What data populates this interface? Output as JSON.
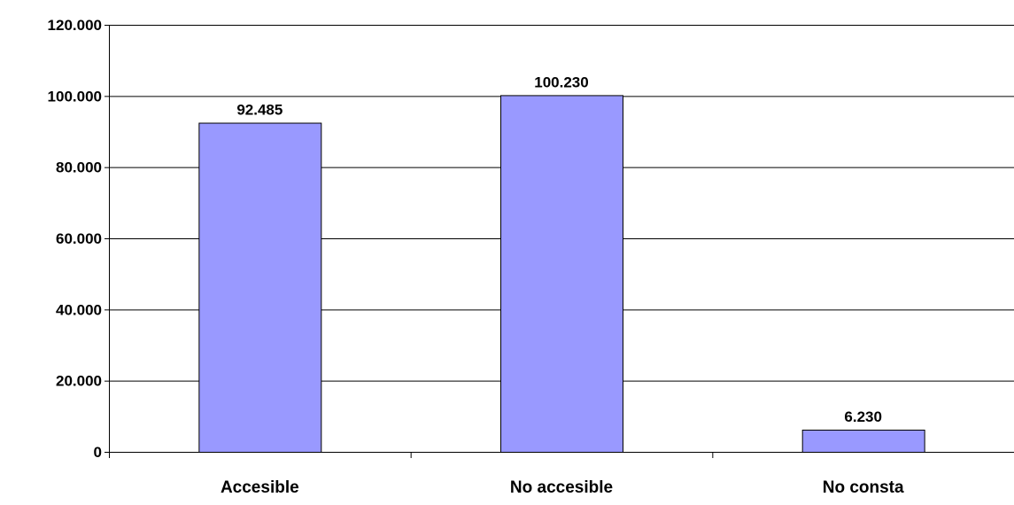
{
  "chart_data": {
    "type": "bar",
    "categories": [
      "Accesible",
      "No accesible",
      "No consta"
    ],
    "values": [
      92485,
      100230,
      6230
    ],
    "value_labels": [
      "92.485",
      "100.230",
      "6.230"
    ],
    "y_ticks": [
      0,
      20000,
      40000,
      60000,
      80000,
      100000,
      120000
    ],
    "y_tick_labels": [
      "0",
      "20.000",
      "40.000",
      "60.000",
      "80.000",
      "100.000",
      "120.000"
    ],
    "ylim": [
      0,
      120000
    ],
    "grid": true,
    "legend": "none",
    "title": "",
    "xlabel": "",
    "ylabel": "",
    "colors": {
      "bar_fill": "#9999FF",
      "bar_stroke": "#000000",
      "grid": "#000000",
      "axis": "#000000",
      "text": "#000000"
    }
  }
}
